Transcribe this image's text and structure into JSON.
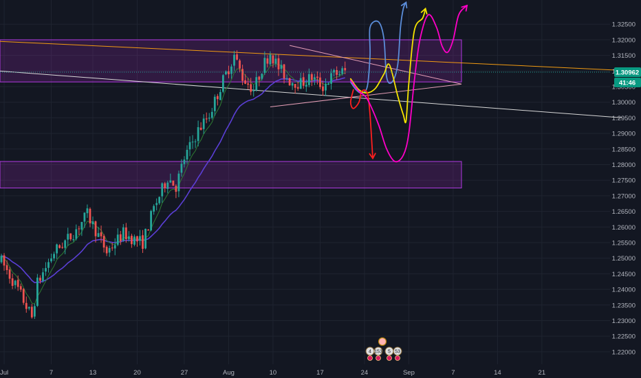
{
  "colors": {
    "background": "#131722",
    "grid": "#1f2430",
    "up": "#26a69a",
    "down": "#ef5350",
    "ma_fast": "#2e7d32",
    "ma_slow": "#5b3fd6",
    "zone_fill": "rgba(156, 39, 176, 0.22)",
    "zone_stroke": "#b03ae0",
    "orange_line": "#f39c12",
    "white_line": "#d9d9d9",
    "triangle": "#e8a0b8",
    "price_badge": "#089981",
    "price_line": "#26a69a",
    "blue_path": "#5b8dd9",
    "yellow_path": "#f5e400",
    "red_path": "#ff1f1f",
    "magenta_path": "#ff00c8",
    "axis_text": "#b2b5be"
  },
  "chart_data": {
    "type": "candlestick",
    "symbol_hint": "forex pair, 4H-style candles",
    "ylim": [
      1.216,
      1.331
    ],
    "x_tick_labels": [
      "Jul",
      "7",
      "13",
      "20",
      "27",
      "Aug",
      "10",
      "17",
      "24",
      "Sep",
      "7",
      "14",
      "21"
    ],
    "y_tick_labels": [
      "1.32500",
      "1.32000",
      "1.31500",
      "1.31000",
      "1.30500",
      "1.30000",
      "1.29500",
      "1.29000",
      "1.28500",
      "1.28000",
      "1.27500",
      "1.27000",
      "1.26500",
      "1.26000",
      "1.25500",
      "1.25000",
      "1.24500",
      "1.24000",
      "1.23500",
      "1.23000",
      "1.22500",
      "1.22000"
    ],
    "y_tick_values": [
      1.325,
      1.32,
      1.315,
      1.31,
      1.305,
      1.3,
      1.295,
      1.29,
      1.285,
      1.28,
      1.275,
      1.27,
      1.265,
      1.26,
      1.255,
      1.25,
      1.245,
      1.24,
      1.235,
      1.23,
      1.225,
      1.22
    ],
    "last_price": "1.30962",
    "last_price_value": 1.30962,
    "countdown": "41:46",
    "waypoints": [
      [
        0,
        1.249
      ],
      [
        6,
        1.24
      ],
      [
        11,
        1.231
      ],
      [
        13,
        1.242
      ],
      [
        19,
        1.252
      ],
      [
        25,
        1.257
      ],
      [
        31,
        1.264
      ],
      [
        34,
        1.259
      ],
      [
        38,
        1.252
      ],
      [
        44,
        1.258
      ],
      [
        48,
        1.256
      ],
      [
        51,
        1.255
      ],
      [
        55,
        1.266
      ],
      [
        60,
        1.276
      ],
      [
        63,
        1.273
      ],
      [
        66,
        1.282
      ],
      [
        71,
        1.291
      ],
      [
        75,
        1.296
      ],
      [
        80,
        1.307
      ],
      [
        84,
        1.315
      ],
      [
        87,
        1.308
      ],
      [
        91,
        1.304
      ],
      [
        94,
        1.311
      ],
      [
        97,
        1.316
      ],
      [
        100,
        1.311
      ],
      [
        104,
        1.307
      ],
      [
        108,
        1.306
      ],
      [
        112,
        1.308
      ],
      [
        116,
        1.305
      ],
      [
        120,
        1.309
      ],
      [
        124,
        1.31
      ]
    ],
    "zones": [
      {
        "from": 1.3065,
        "to": 1.32,
        "x_start": 0,
        "x_end": 166
      },
      {
        "from": 1.2725,
        "to": 1.281,
        "x_start": 0,
        "x_end": 166
      }
    ],
    "trendlines": [
      {
        "color_key": "orange_line",
        "points": [
          [
            0,
            1.3195
          ],
          [
            224,
            1.3102
          ]
        ]
      },
      {
        "color_key": "white_line",
        "points": [
          [
            0,
            1.31
          ],
          [
            224,
            1.295
          ]
        ]
      }
    ],
    "triangle": {
      "apex": [
        166,
        1.3058
      ],
      "upper_start": [
        104,
        1.3182
      ],
      "lower_start": [
        97,
        1.2985
      ]
    },
    "x_tick_positions": [
      1,
      18,
      33,
      49,
      66,
      82,
      98,
      115,
      131,
      147,
      163,
      179,
      195
    ],
    "projection_paths": [
      {
        "color_key": "blue_path",
        "points": [
          [
            126,
            1.3065
          ],
          [
            128,
            1.304
          ],
          [
            130,
            1.303
          ],
          [
            132,
            1.305
          ],
          [
            133,
            1.315
          ],
          [
            133,
            1.324
          ],
          [
            136,
            1.3258
          ],
          [
            138,
            1.3205
          ],
          [
            139,
            1.308
          ],
          [
            141,
            1.3065
          ],
          [
            143,
            1.312
          ],
          [
            144,
            1.324
          ],
          [
            145,
            1.33
          ],
          [
            146,
            1.332
          ]
        ],
        "arrow": true
      },
      {
        "color_key": "yellow_path",
        "points": [
          [
            126,
            1.3075
          ],
          [
            129,
            1.304
          ],
          [
            132,
            1.303
          ],
          [
            135,
            1.3045
          ],
          [
            138,
            1.309
          ],
          [
            140,
            1.312
          ],
          [
            143,
            1.302
          ],
          [
            145,
            1.296
          ],
          [
            146,
            1.294
          ],
          [
            147,
            1.306
          ],
          [
            149,
            1.323
          ],
          [
            152,
            1.327
          ],
          [
            153,
            1.33
          ]
        ],
        "arrow": true
      },
      {
        "color_key": "red_path",
        "points": [
          [
            127,
            1.304
          ],
          [
            126,
            1.3
          ],
          [
            127,
            1.298
          ],
          [
            129,
            1.3
          ],
          [
            130,
            1.3035
          ],
          [
            132,
            1.303
          ],
          [
            133,
            1.296
          ],
          [
            134,
            1.282
          ]
        ],
        "arrow": true
      },
      {
        "color_key": "magenta_path",
        "points": [
          [
            126,
            1.307
          ],
          [
            129,
            1.3035
          ],
          [
            132,
            1.301
          ],
          [
            136,
            1.293
          ],
          [
            139,
            1.285
          ],
          [
            142,
            1.281
          ],
          [
            145,
            1.283
          ],
          [
            147,
            1.29
          ],
          [
            149,
            1.307
          ],
          [
            151,
            1.32
          ],
          [
            154,
            1.328
          ],
          [
            157,
            1.324
          ],
          [
            159,
            1.318
          ],
          [
            161,
            1.316
          ],
          [
            163,
            1.32
          ],
          [
            165,
            1.328
          ],
          [
            168,
            1.331
          ]
        ],
        "arrow": true
      }
    ],
    "events": [
      "4",
      "153",
      "5",
      "53"
    ]
  }
}
